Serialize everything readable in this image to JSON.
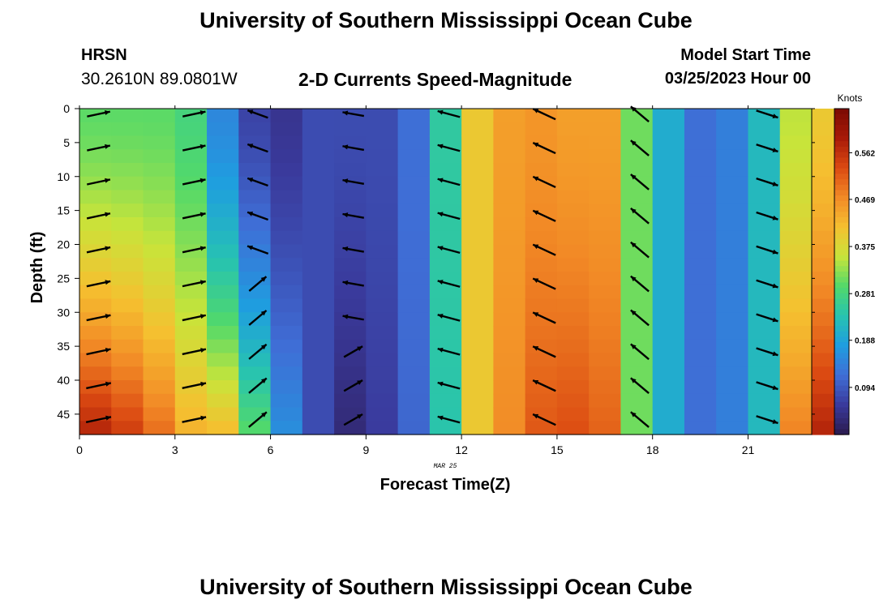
{
  "page": {
    "title": "University of Southern Mississippi Ocean Cube",
    "title_bottom": "University of Southern Mississippi Ocean Cube",
    "station": "HRSN",
    "coords": "30.2610N  89.0801W",
    "subtitle": "2-D Currents Speed-Magnitude",
    "model_start_label": "Model Start Time",
    "model_start_value": "03/25/2023 Hour 00",
    "date_note": "MAR 25"
  },
  "chart_data": {
    "type": "heatmap",
    "title": "2-D Currents Speed-Magnitude",
    "xlabel": "Forecast Time(Z)",
    "ylabel": "Depth (ft)",
    "x_ticks": [
      0,
      3,
      6,
      9,
      12,
      15,
      18,
      21
    ],
    "y_ticks": [
      0,
      5,
      10,
      15,
      20,
      25,
      30,
      35,
      40,
      45
    ],
    "xlim": [
      0,
      23
    ],
    "ylim": [
      0,
      48
    ],
    "y_inverted": true,
    "colorbar": {
      "label": "Knots",
      "ticks": [
        0.094,
        0.188,
        0.281,
        0.375,
        0.469,
        0.562
      ],
      "range": [
        0,
        0.65
      ]
    },
    "colors": [
      "#2b1a4e",
      "#3a3a9c",
      "#3f6ed6",
      "#1f9de0",
      "#27c3b0",
      "#52d96a",
      "#c8e43a",
      "#f5c030",
      "#f28a26",
      "#db4a12",
      "#a81a08",
      "#7a0a03"
    ],
    "speed_by_hour": [
      {
        "hour": 0,
        "surface": 0.3,
        "bottom": 0.58
      },
      {
        "hour": 1,
        "surface": 0.3,
        "bottom": 0.55
      },
      {
        "hour": 2,
        "surface": 0.3,
        "bottom": 0.5
      },
      {
        "hour": 3,
        "surface": 0.28,
        "bottom": 0.43
      },
      {
        "hour": 4,
        "surface": 0.15,
        "bottom": 0.42
      },
      {
        "hour": 5,
        "surface": 0.07,
        "bottom": 0.3
      },
      {
        "hour": 6,
        "surface": 0.05,
        "bottom": 0.16
      },
      {
        "hour": 7,
        "surface": 0.08,
        "bottom": 0.08
      },
      {
        "hour": 8,
        "surface": 0.08,
        "bottom": 0.03
      },
      {
        "hour": 9,
        "surface": 0.08,
        "bottom": 0.06
      },
      {
        "hour": 10,
        "surface": 0.12,
        "bottom": 0.11
      },
      {
        "hour": 11,
        "surface": 0.25,
        "bottom": 0.24
      },
      {
        "hour": 12,
        "surface": 0.4,
        "bottom": 0.4
      },
      {
        "hour": 13,
        "surface": 0.45,
        "bottom": 0.47
      },
      {
        "hour": 14,
        "surface": 0.46,
        "bottom": 0.52
      },
      {
        "hour": 15,
        "surface": 0.45,
        "bottom": 0.53
      },
      {
        "hour": 16,
        "surface": 0.45,
        "bottom": 0.51
      },
      {
        "hour": 17,
        "surface": 0.31,
        "bottom": 0.31
      },
      {
        "hour": 18,
        "surface": 0.2,
        "bottom": 0.2
      },
      {
        "hour": 19,
        "surface": 0.12,
        "bottom": 0.12
      },
      {
        "hour": 20,
        "surface": 0.14,
        "bottom": 0.14
      },
      {
        "hour": 21,
        "surface": 0.22,
        "bottom": 0.22
      },
      {
        "hour": 22,
        "surface": 0.35,
        "bottom": 0.48
      },
      {
        "hour": 23,
        "surface": 0.4,
        "bottom": 0.58
      }
    ],
    "vector_hours": [
      0.6,
      3.6,
      5.6,
      8.6,
      11.6,
      14.6,
      17.6,
      21.6
    ],
    "vector_depths": [
      0,
      5,
      10,
      15,
      20,
      25,
      30,
      35,
      40,
      45
    ]
  }
}
